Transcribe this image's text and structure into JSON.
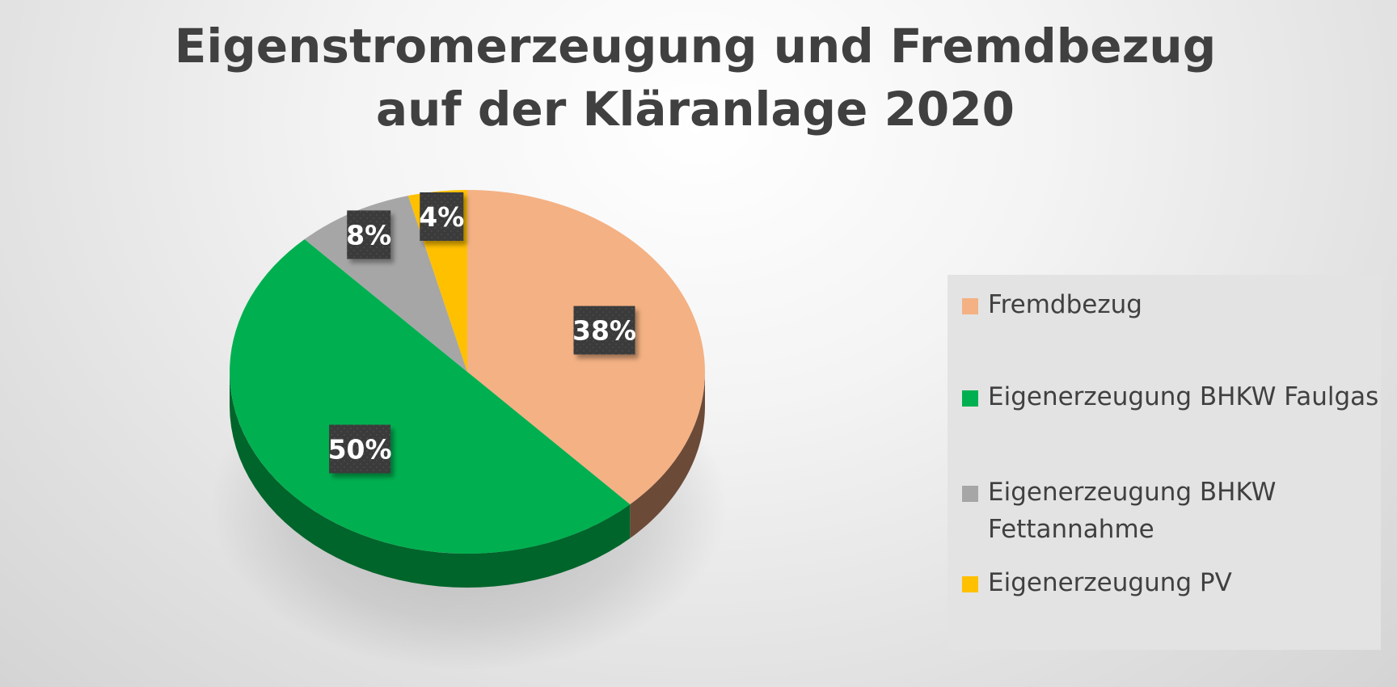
{
  "title_line1": "Eigenstromerzeugung und Fremdbezug",
  "title_line2": "auf der Kläranlage 2020",
  "chart_data": {
    "type": "pie",
    "title": "Eigenstromerzeugung und Fremdbezug auf der Kläranlage 2020",
    "categories": [
      "Fremdbezug",
      "Eigenerzeugung BHKW Faulgas",
      "Eigenerzeugung BHKW Fettannahme",
      "Eigenerzeugung PV"
    ],
    "values": [
      38,
      50,
      8,
      4
    ],
    "data_labels": [
      "38%",
      "50%",
      "8%",
      "4%"
    ],
    "colors": [
      "#f4b183",
      "#00b050",
      "#a6a6a6",
      "#ffc000"
    ],
    "side_colors": [
      "#6b4a38",
      "#00652b",
      "#6a6a6a",
      "#a67c00"
    ],
    "style": "3d",
    "legend_position": "right"
  },
  "legend": {
    "items": [
      {
        "line1": "Fremdbezug",
        "line2": ""
      },
      {
        "line1": "Eigenerzeugung BHKW Faulgas",
        "line2": ""
      },
      {
        "line1": "Eigenerzeugung BHKW",
        "line2": "Fettannahme"
      },
      {
        "line1": "Eigenerzeugung PV",
        "line2": ""
      }
    ]
  }
}
